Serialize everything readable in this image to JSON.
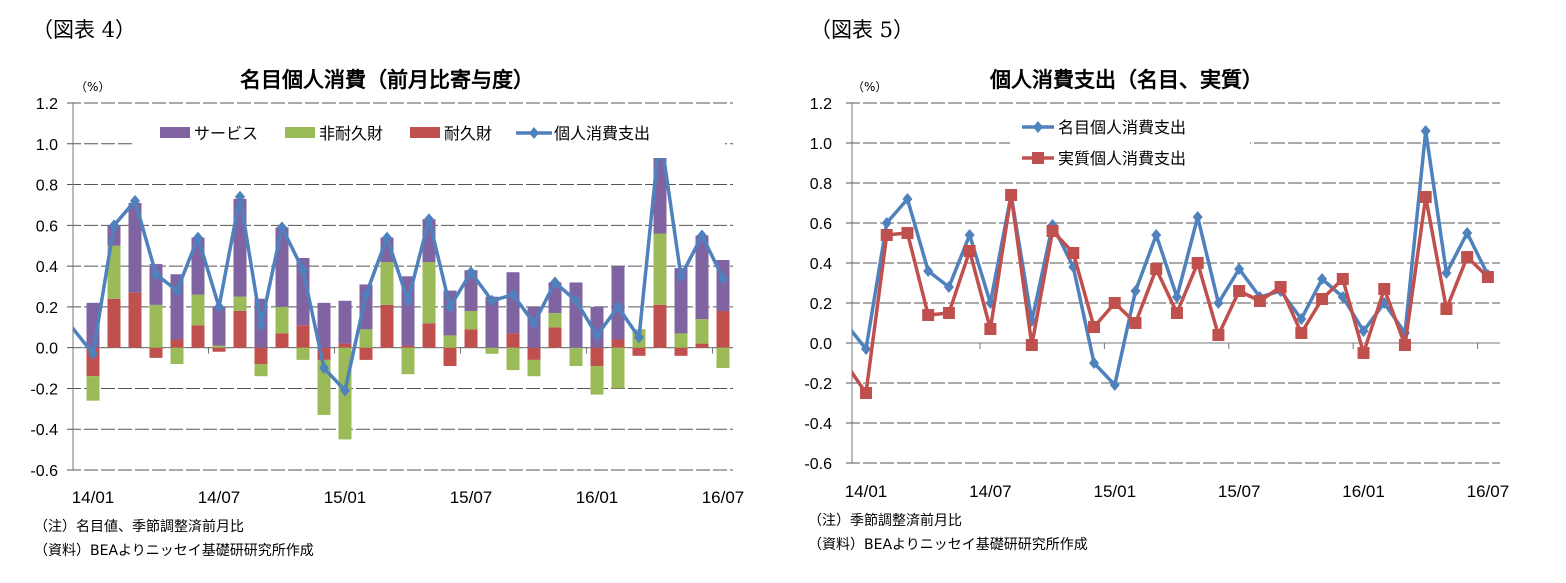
{
  "left": {
    "figure_label": "（図表 4）",
    "unit": "（%）",
    "notes": [
      "（注）名目値、季節調整済前月比",
      "（資料）BEAよりニッセイ基礎研研究所作成"
    ]
  },
  "right": {
    "figure_label": "（図表 5）",
    "unit": "（%）",
    "notes": [
      "（注）季節調整済前月比",
      "（資料）BEAよりニッセイ基礎研研究所作成"
    ]
  },
  "chart_data": [
    {
      "type": "bar",
      "stacked": true,
      "title": "名目個人消費（前月比寄与度）",
      "xlabel": "",
      "ylabel": "（%）",
      "ylim": [
        -0.6,
        1.2
      ],
      "yticks": [
        "1.2",
        "1.0",
        "0.8",
        "0.6",
        "0.4",
        "0.2",
        "0.0",
        "-0.2",
        "-0.4",
        "-0.6"
      ],
      "xtick_labels": [
        "14/01",
        "14/07",
        "15/01",
        "15/07",
        "16/01",
        "16/07"
      ],
      "grid": true,
      "legend_placement": "top",
      "categories": [
        "14/01",
        "14/02",
        "14/03",
        "14/04",
        "14/05",
        "14/06",
        "14/07",
        "14/08",
        "14/09",
        "14/10",
        "14/11",
        "14/12",
        "15/01",
        "15/02",
        "15/03",
        "15/04",
        "15/05",
        "15/06",
        "15/07",
        "15/08",
        "15/09",
        "15/10",
        "15/11",
        "15/12",
        "16/01",
        "16/02",
        "16/03",
        "16/04",
        "16/05",
        "16/06",
        "16/07"
      ],
      "series": [
        {
          "name": "耐久財",
          "kind": "bar",
          "color": "#C0504D",
          "values": [
            -0.14,
            0.24,
            0.27,
            -0.05,
            0.04,
            0.11,
            -0.02,
            0.18,
            -0.08,
            0.07,
            0.11,
            -0.06,
            0.02,
            -0.06,
            0.21,
            0.01,
            0.12,
            -0.09,
            0.09,
            0.0,
            0.07,
            -0.06,
            0.1,
            0.0,
            -0.09,
            0.04,
            -0.04,
            0.21,
            -0.04,
            0.02,
            0.18
          ]
        },
        {
          "name": "非耐久財",
          "kind": "bar",
          "color": "#9BBB59",
          "values": [
            -0.12,
            0.26,
            0.0,
            0.21,
            -0.08,
            0.15,
            0.01,
            0.07,
            -0.06,
            0.13,
            -0.06,
            -0.27,
            -0.45,
            0.09,
            0.21,
            -0.13,
            0.3,
            0.06,
            0.09,
            -0.03,
            -0.11,
            -0.08,
            0.07,
            -0.09,
            -0.14,
            -0.2,
            0.09,
            0.35,
            0.07,
            0.12,
            -0.1
          ]
        },
        {
          "name": "サービス",
          "kind": "bar",
          "color": "#8064A2",
          "values": [
            0.22,
            0.1,
            0.44,
            0.2,
            0.32,
            0.28,
            0.19,
            0.48,
            0.24,
            0.39,
            0.33,
            0.22,
            0.21,
            0.22,
            0.12,
            0.34,
            0.21,
            0.22,
            0.2,
            0.25,
            0.3,
            0.2,
            0.15,
            0.32,
            0.2,
            0.36,
            0.0,
            0.5,
            0.32,
            0.41,
            0.25
          ]
        },
        {
          "name": "個人消費支出",
          "kind": "line",
          "color": "#4F81BD",
          "leading_value": 0.1,
          "values": [
            -0.03,
            0.6,
            0.72,
            0.36,
            0.28,
            0.54,
            0.2,
            0.74,
            0.11,
            0.59,
            0.38,
            -0.1,
            -0.21,
            0.26,
            0.54,
            0.23,
            0.63,
            0.2,
            0.37,
            0.23,
            0.26,
            0.12,
            0.32,
            0.23,
            0.06,
            0.2,
            0.05,
            1.06,
            0.35,
            0.55,
            0.34
          ]
        }
      ],
      "legend": [
        "サービス",
        "非耐久財",
        "耐久財",
        "個人消費支出"
      ]
    },
    {
      "type": "line",
      "title": "個人消費支出（名目、実質）",
      "xlabel": "",
      "ylabel": "（%）",
      "ylim": [
        -0.6,
        1.2
      ],
      "yticks": [
        "1.2",
        "1.0",
        "0.8",
        "0.6",
        "0.4",
        "0.2",
        "0.0",
        "-0.2",
        "-0.4",
        "-0.6"
      ],
      "xtick_labels": [
        "14/01",
        "14/07",
        "15/01",
        "15/07",
        "16/01",
        "16/07"
      ],
      "grid": true,
      "legend_placement": "top-left",
      "categories": [
        "14/01",
        "14/02",
        "14/03",
        "14/04",
        "14/05",
        "14/06",
        "14/07",
        "14/08",
        "14/09",
        "14/10",
        "14/11",
        "14/12",
        "15/01",
        "15/02",
        "15/03",
        "15/04",
        "15/05",
        "15/06",
        "15/07",
        "15/08",
        "15/09",
        "15/10",
        "15/11",
        "15/12",
        "16/01",
        "16/02",
        "16/03",
        "16/04",
        "16/05",
        "16/06",
        "16/07"
      ],
      "series": [
        {
          "name": "名目個人消費支出",
          "marker": "diamond",
          "color": "#4F81BD",
          "leading_value": 0.1,
          "values": [
            -0.03,
            0.6,
            0.72,
            0.36,
            0.28,
            0.54,
            0.2,
            0.74,
            0.11,
            0.59,
            0.38,
            -0.1,
            -0.21,
            0.26,
            0.54,
            0.23,
            0.63,
            0.2,
            0.37,
            0.23,
            0.26,
            0.12,
            0.32,
            0.23,
            0.06,
            0.2,
            0.05,
            1.06,
            0.35,
            0.55,
            0.34
          ]
        },
        {
          "name": "実質個人消費支出",
          "marker": "square",
          "color": "#C0504D",
          "leading_value": -0.1,
          "values": [
            -0.25,
            0.54,
            0.55,
            0.14,
            0.15,
            0.46,
            0.07,
            0.74,
            -0.01,
            0.56,
            0.45,
            0.08,
            0.2,
            0.1,
            0.37,
            0.15,
            0.4,
            0.04,
            0.26,
            0.21,
            0.28,
            0.05,
            0.22,
            0.32,
            -0.05,
            0.27,
            -0.01,
            0.73,
            0.17,
            0.43,
            0.33
          ]
        }
      ]
    }
  ]
}
